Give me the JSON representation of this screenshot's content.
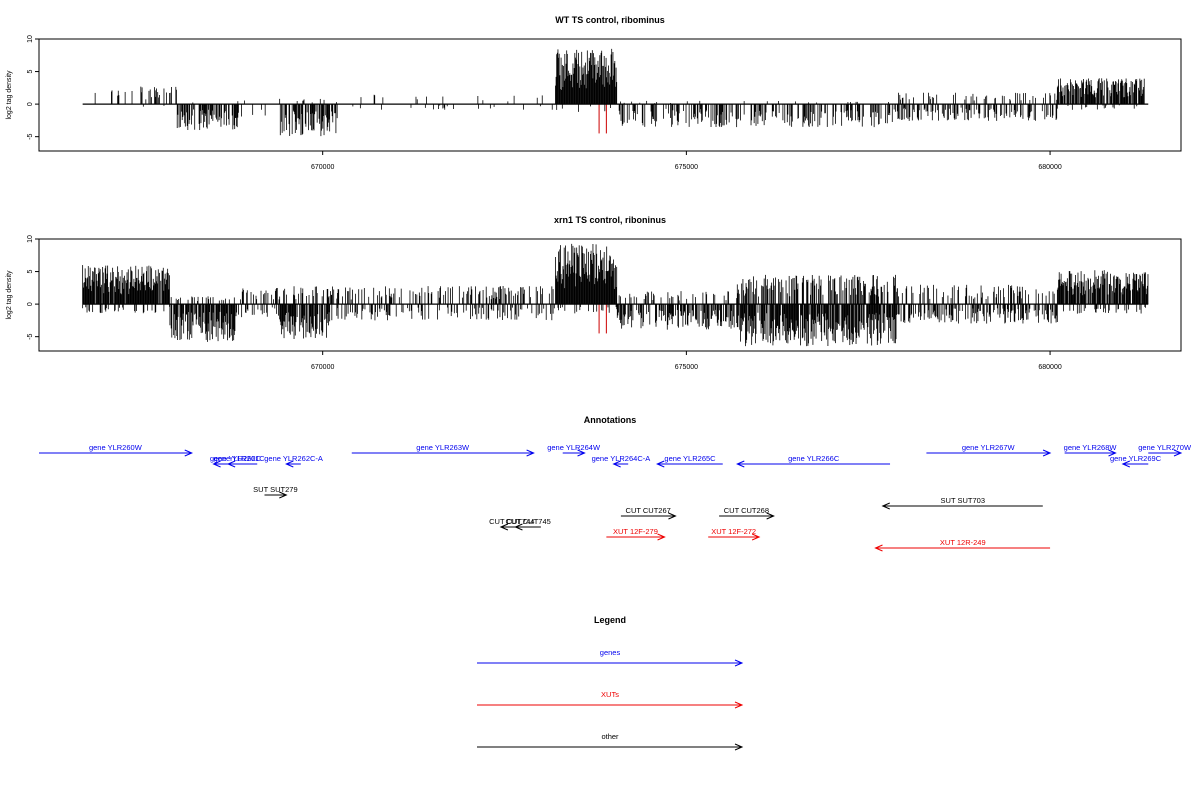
{
  "chart_data": [
    {
      "type": "bar",
      "title": "WT TS control, ribominus",
      "ylabel": "log2 tag density",
      "xlim": [
        666100,
        681800
      ],
      "ylim": [
        -7.2,
        10
      ],
      "yticks": [
        -5,
        0,
        5,
        10
      ],
      "xticks": [
        670000,
        675000,
        680000
      ],
      "marker_x": [
        673800,
        673900
      ],
      "marker_color": "#cc0000",
      "regions": [
        {
          "from": 666700,
          "to": 667500,
          "pos": 2.6,
          "neg": 0.0,
          "pdensity": 0.15,
          "ndensity": 0.0
        },
        {
          "from": 667500,
          "to": 668000,
          "pos": 2.8,
          "neg": -0.8,
          "pdensity": 0.35,
          "ndensity": 0.05
        },
        {
          "from": 668000,
          "to": 668900,
          "pos": 0.6,
          "neg": -4.0,
          "pdensity": 0.05,
          "ndensity": 0.6
        },
        {
          "from": 668900,
          "to": 669400,
          "pos": 1.0,
          "neg": -1.8,
          "pdensity": 0.05,
          "ndensity": 0.08
        },
        {
          "from": 669400,
          "to": 670200,
          "pos": 1.0,
          "neg": -5.0,
          "pdensity": 0.08,
          "ndensity": 0.65
        },
        {
          "from": 670200,
          "to": 673200,
          "pos": 1.5,
          "neg": -0.9,
          "pdensity": 0.04,
          "ndensity": 0.04
        },
        {
          "from": 673200,
          "to": 674050,
          "pos": 8.6,
          "neg": -1.2,
          "pdensity": 1.0,
          "ndensity": 0.12
        },
        {
          "from": 674050,
          "to": 677900,
          "pos": 0.5,
          "neg": -3.6,
          "pdensity": 0.04,
          "ndensity": 0.45
        },
        {
          "from": 677900,
          "to": 680100,
          "pos": 1.8,
          "neg": -2.6,
          "pdensity": 0.18,
          "ndensity": 0.35
        },
        {
          "from": 680100,
          "to": 681300,
          "pos": 4.0,
          "neg": -0.9,
          "pdensity": 0.75,
          "ndensity": 0.1
        },
        {
          "from": 681300,
          "to": 681350,
          "pos": 0.0,
          "neg": 0.0,
          "pdensity": 0.0,
          "ndensity": 0.0
        }
      ]
    },
    {
      "type": "bar",
      "title": "xrn1 TS control, riboninus",
      "ylabel": "log2 tag density",
      "xlim": [
        666100,
        681800
      ],
      "ylim": [
        -7.2,
        10
      ],
      "yticks": [
        -5,
        0,
        5,
        10
      ],
      "xticks": [
        670000,
        675000,
        680000
      ],
      "marker_x": [
        673800,
        673900
      ],
      "marker_color": "#cc0000",
      "regions": [
        {
          "from": 666700,
          "to": 667900,
          "pos": 6.0,
          "neg": -1.5,
          "pdensity": 0.9,
          "ndensity": 0.2
        },
        {
          "from": 667900,
          "to": 668800,
          "pos": 1.2,
          "neg": -5.8,
          "pdensity": 0.15,
          "ndensity": 0.8
        },
        {
          "from": 668800,
          "to": 669400,
          "pos": 2.5,
          "neg": -2.0,
          "pdensity": 0.35,
          "ndensity": 0.25
        },
        {
          "from": 669400,
          "to": 670100,
          "pos": 2.8,
          "neg": -5.5,
          "pdensity": 0.35,
          "ndensity": 0.8
        },
        {
          "from": 670100,
          "to": 673200,
          "pos": 2.8,
          "neg": -2.5,
          "pdensity": 0.3,
          "ndensity": 0.25
        },
        {
          "from": 673200,
          "to": 674050,
          "pos": 9.3,
          "neg": -1.5,
          "pdensity": 1.0,
          "ndensity": 0.2
        },
        {
          "from": 674050,
          "to": 675700,
          "pos": 2.0,
          "neg": -4.0,
          "pdensity": 0.2,
          "ndensity": 0.55
        },
        {
          "from": 675700,
          "to": 677900,
          "pos": 4.5,
          "neg": -6.5,
          "pdensity": 0.5,
          "ndensity": 0.85
        },
        {
          "from": 677900,
          "to": 680100,
          "pos": 3.0,
          "neg": -3.0,
          "pdensity": 0.3,
          "ndensity": 0.45
        },
        {
          "from": 680100,
          "to": 681350,
          "pos": 5.3,
          "neg": -1.5,
          "pdensity": 0.9,
          "ndensity": 0.2
        }
      ]
    }
  ],
  "annotations": {
    "title": "Annotations",
    "xlim": [
      666100,
      681800
    ],
    "colors": {
      "gene": "#0000ee",
      "xut": "#ee0000",
      "other": "#000000"
    },
    "features": [
      {
        "label": "gene YLR260W",
        "start": 666100,
        "end": 668200,
        "strand": "+",
        "row": 0,
        "kind": "gene"
      },
      {
        "label": "gene YLR262C",
        "start": 668500,
        "end": 669100,
        "strand": "-",
        "row": 1,
        "kind": "gene"
      },
      {
        "label": "gene YLR261C",
        "start": 668700,
        "end": 669000,
        "strand": "-",
        "row": 1,
        "kind": "gene"
      },
      {
        "label": "gene YLR262C-A",
        "start": 669500,
        "end": 669700,
        "strand": "-",
        "row": 1,
        "kind": "gene"
      },
      {
        "label": "gene YLR263W",
        "start": 670400,
        "end": 672900,
        "strand": "+",
        "row": 0,
        "kind": "gene"
      },
      {
        "label": "gene YLR264W",
        "start": 673300,
        "end": 673600,
        "strand": "+",
        "row": 0,
        "kind": "gene"
      },
      {
        "label": "gene YLR264C-A",
        "start": 674000,
        "end": 674200,
        "strand": "-",
        "row": 1,
        "kind": "gene"
      },
      {
        "label": "gene YLR265C",
        "start": 674600,
        "end": 675500,
        "strand": "-",
        "row": 1,
        "kind": "gene"
      },
      {
        "label": "gene YLR266C",
        "start": 675700,
        "end": 677800,
        "strand": "-",
        "row": 1,
        "kind": "gene"
      },
      {
        "label": "gene YLR267W",
        "start": 678300,
        "end": 680000,
        "strand": "+",
        "row": 0,
        "kind": "gene"
      },
      {
        "label": "gene YLR268W",
        "start": 680200,
        "end": 680900,
        "strand": "+",
        "row": 0,
        "kind": "gene"
      },
      {
        "label": "gene YLR269C",
        "start": 681000,
        "end": 681350,
        "strand": "-",
        "row": 1,
        "kind": "gene"
      },
      {
        "label": "gene YLR270W",
        "start": 681350,
        "end": 681800,
        "strand": "+",
        "row": 0,
        "kind": "gene"
      },
      {
        "label": "SUT SUT279",
        "start": 669200,
        "end": 669500,
        "strand": "+",
        "row": 2,
        "kind": "other"
      },
      {
        "label": "CUT CUT267",
        "start": 674100,
        "end": 674850,
        "strand": "+",
        "row": 3,
        "kind": "other"
      },
      {
        "label": "CUT CUT268",
        "start": 675450,
        "end": 676200,
        "strand": "+",
        "row": 3,
        "kind": "other"
      },
      {
        "label": "SUT SUT703",
        "start": 677700,
        "end": 679900,
        "strand": "-",
        "row": 4,
        "kind": "other"
      },
      {
        "label": "CUT CUT745",
        "start": 672650,
        "end": 673000,
        "strand": "-",
        "row": 5,
        "kind": "other"
      },
      {
        "label": "CUT CUT744",
        "start": 672450,
        "end": 672750,
        "strand": "-",
        "row": 5,
        "kind": "other"
      },
      {
        "label": "XUT 12F-279",
        "start": 673900,
        "end": 674700,
        "strand": "+",
        "row": 6,
        "kind": "xut"
      },
      {
        "label": "XUT 12F-272",
        "start": 675300,
        "end": 676000,
        "strand": "+",
        "row": 6,
        "kind": "xut"
      },
      {
        "label": "XUT 12R-249",
        "start": 677600,
        "end": 680000,
        "strand": "-",
        "row": 7,
        "kind": "xut"
      }
    ]
  },
  "legend": {
    "title": "Legend",
    "items": [
      {
        "label": "genes",
        "color": "#0000ee"
      },
      {
        "label": "XUTs",
        "color": "#ee0000"
      },
      {
        "label": "other",
        "color": "#000000"
      }
    ]
  }
}
